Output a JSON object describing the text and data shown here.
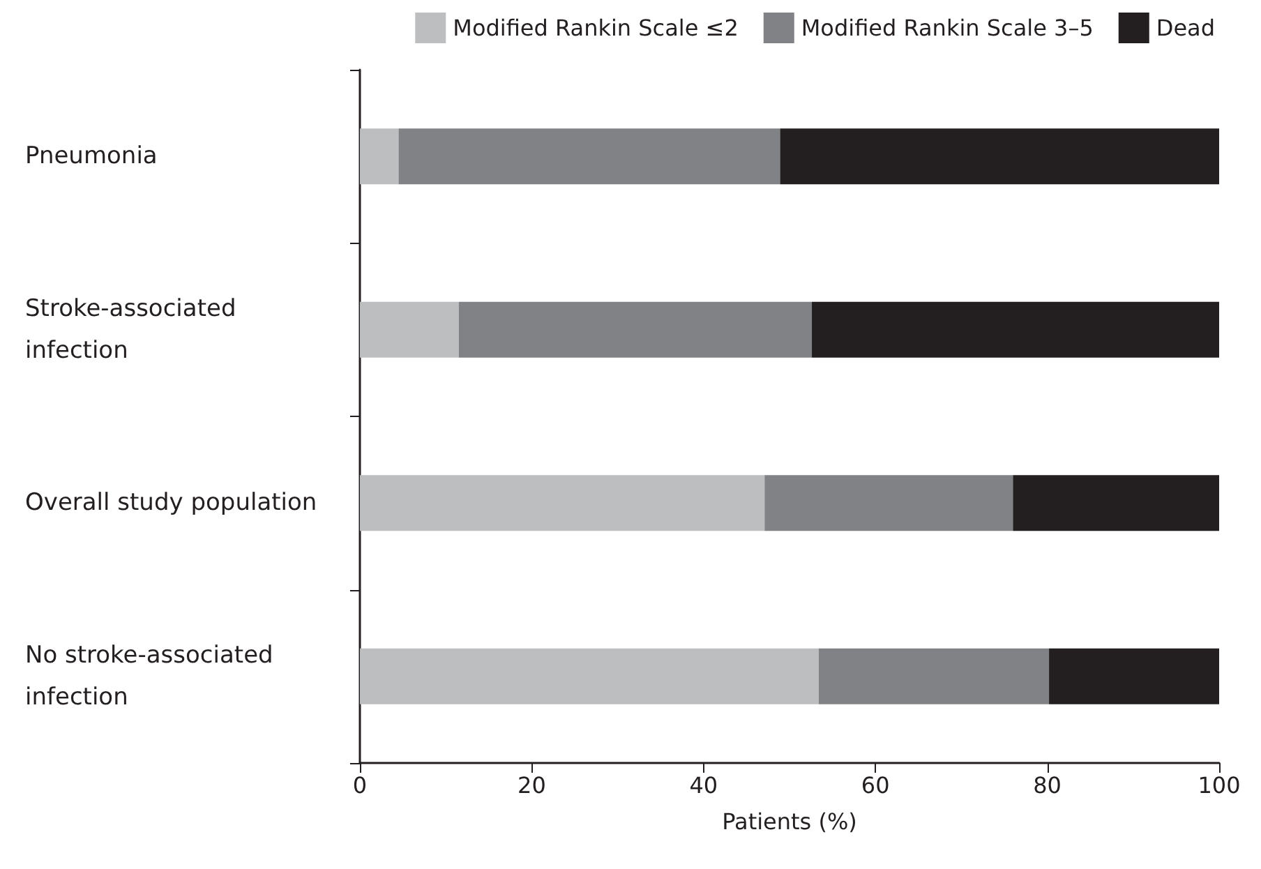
{
  "chart_data": {
    "type": "bar",
    "orientation": "horizontal",
    "stacked": true,
    "xlabel": "Patients (%)",
    "categories": [
      "Pneumonia",
      "Stroke-associated\ninfection",
      "Overall study population",
      "No stroke-associated\ninfection"
    ],
    "series": [
      {
        "name": "Modified Rankin Scale ≤2",
        "color": "#bcbec0",
        "values": [
          4.5,
          11.5,
          47.1,
          53.4
        ]
      },
      {
        "name": "Modified Rankin Scale 3–5",
        "color": "#808285",
        "values": [
          44.4,
          41.1,
          28.9,
          26.8
        ]
      },
      {
        "name": "Dead",
        "color": "#231f20",
        "values": [
          51.1,
          47.4,
          24.0,
          19.8
        ]
      }
    ],
    "xlim": [
      0,
      100
    ],
    "xticks": [
      0,
      20,
      40,
      60,
      80,
      100
    ],
    "grid": false,
    "legend": "top right"
  }
}
